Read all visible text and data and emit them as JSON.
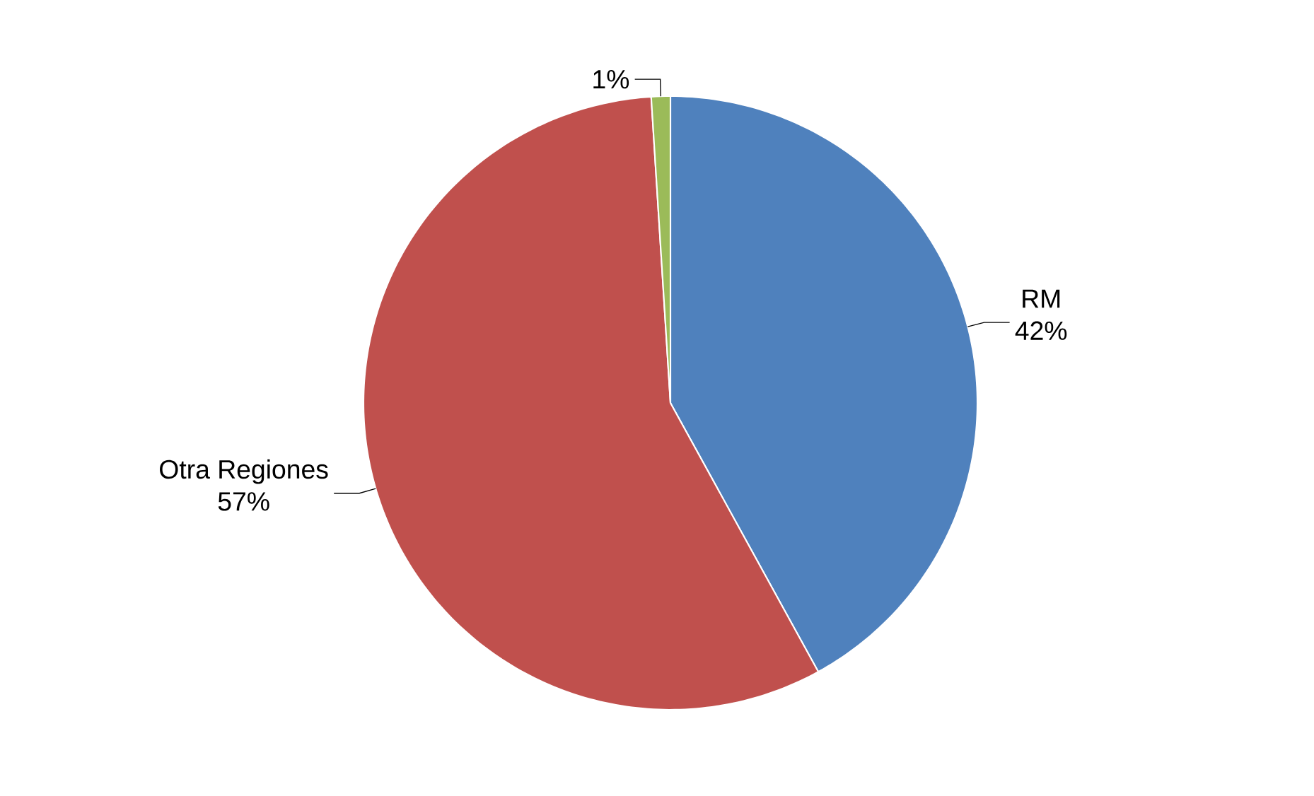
{
  "chart_data": {
    "type": "pie",
    "categories": [
      "RM",
      "Otra Regiones",
      null
    ],
    "values": [
      42,
      57,
      1
    ],
    "value_labels": [
      "42%",
      "57%",
      "1%"
    ],
    "colors": [
      "#4f81bd",
      "#c0504d",
      "#9bbb59"
    ]
  }
}
